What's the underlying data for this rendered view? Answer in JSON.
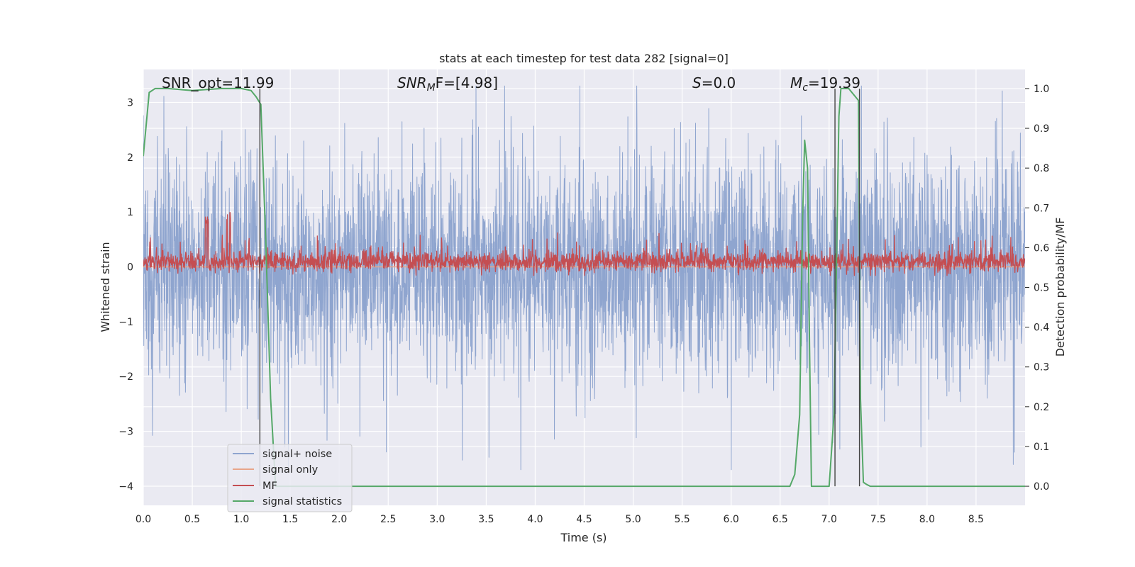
{
  "chart_data": {
    "type": "line",
    "title": "stats at each timestep for test data 282 [signal=0]",
    "xlabel": "Time (s)",
    "ylabel_left": "Whitened strain",
    "ylabel_right": "Detection probability/MF",
    "xlim": [
      0,
      9.0
    ],
    "ylim_left": [
      -4.35,
      3.6
    ],
    "ylim_right": [
      -0.048,
      1.048
    ],
    "x_ticks": [
      "0.0",
      "0.5",
      "1.0",
      "1.5",
      "2.0",
      "2.5",
      "3.0",
      "3.5",
      "4.0",
      "4.5",
      "5.0",
      "5.5",
      "6.0",
      "6.5",
      "7.0",
      "7.5",
      "8.0",
      "8.5"
    ],
    "y_ticks_left": [
      "−4",
      "−3",
      "−2",
      "−1",
      "0",
      "1",
      "2",
      "3"
    ],
    "y_ticks_right": [
      "0.0",
      "0.1",
      "0.2",
      "0.3",
      "0.4",
      "0.5",
      "0.6",
      "0.7",
      "0.8",
      "0.9",
      "1.0"
    ],
    "grid": true,
    "legend_placement": "lower-left",
    "annotations": {
      "snr_opt": "SNR_opt=11.99",
      "snr_mf_label": "SNR",
      "snr_mf_sub": "M",
      "snr_mf_rest": "F=[4.98]",
      "s_label": "S",
      "s_rest": "=0.0",
      "mc_label": "M",
      "mc_sub": "c",
      "mc_rest": "=19.39"
    },
    "series": [
      {
        "name": "signal+ noise",
        "axis": "left",
        "color": "#8fa5cf",
        "style": "dense noise band",
        "typical_range": [
          -1.9,
          1.9
        ],
        "peak_range": [
          -3.7,
          3.3
        ]
      },
      {
        "name": "signal only",
        "axis": "left",
        "color": "#e8a58a",
        "style": "flat at zero",
        "values_constant": 0
      },
      {
        "name": "MF",
        "axis": "right",
        "color": "#c44e52",
        "style": "dense noise band",
        "typical_range": [
          0.54,
          0.6
        ],
        "peak_range": [
          0.53,
          0.69
        ]
      },
      {
        "name": "signal statistics",
        "axis": "right",
        "color": "#55a868",
        "x": [
          0.0,
          0.06,
          0.12,
          0.25,
          0.5,
          0.8,
          1.0,
          1.1,
          1.15,
          1.2,
          1.25,
          1.3,
          1.35,
          1.4,
          2.0,
          3.0,
          4.0,
          5.0,
          6.0,
          6.5,
          6.6,
          6.65,
          6.7,
          6.73,
          6.75,
          6.78,
          6.8,
          6.82,
          6.95,
          7.0,
          7.05,
          7.1,
          7.12,
          7.15,
          7.2,
          7.25,
          7.3,
          7.32,
          7.35,
          7.38,
          7.42,
          7.5,
          7.7,
          8.0,
          8.5,
          9.0
        ],
        "values": [
          0.83,
          0.99,
          1.0,
          1.0,
          0.995,
          1.0,
          1.0,
          0.995,
          0.98,
          0.96,
          0.62,
          0.22,
          0.0,
          0.0,
          0.0,
          0.0,
          0.0,
          0.0,
          0.0,
          0.0,
          0.0,
          0.03,
          0.18,
          0.68,
          0.87,
          0.8,
          0.35,
          0.0,
          0.0,
          0.0,
          0.18,
          0.93,
          1.0,
          1.0,
          1.0,
          0.985,
          0.97,
          0.22,
          0.01,
          0.005,
          0.0,
          0.0,
          0.0,
          0.0,
          0.0,
          0.0
        ]
      }
    ],
    "vertical_markers_x": [
      1.19,
      7.06,
      7.31
    ]
  }
}
